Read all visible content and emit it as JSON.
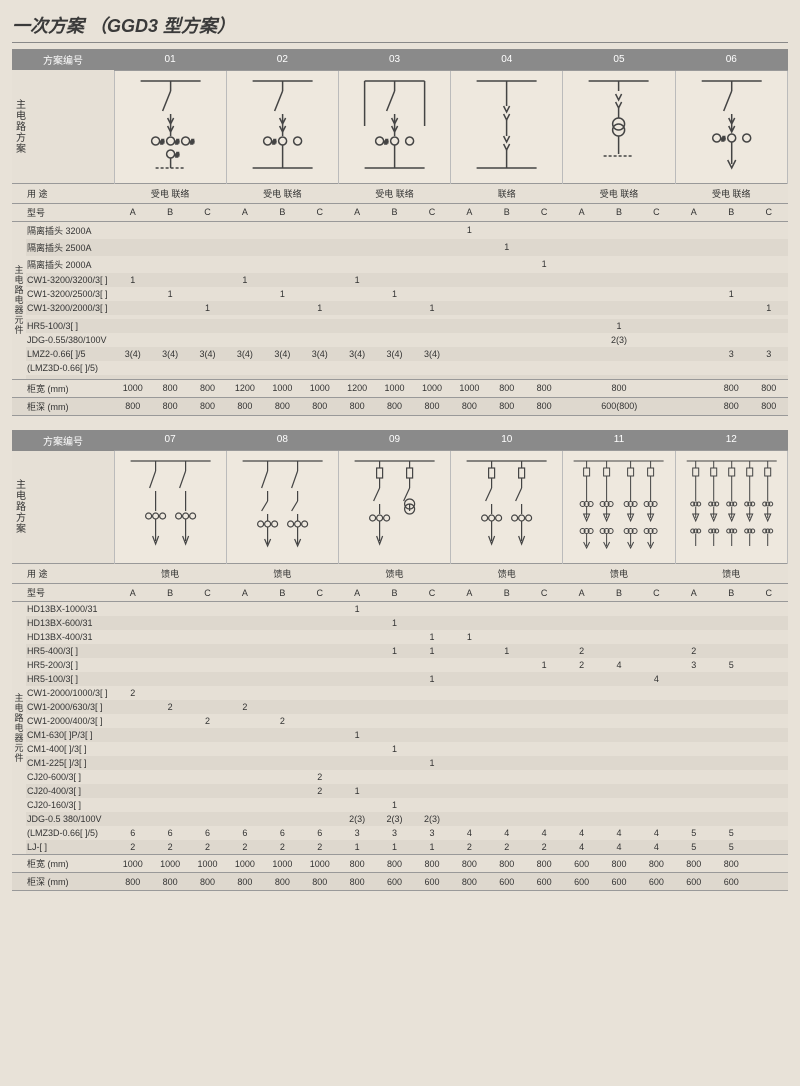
{
  "title": "一次方案 （GGD3 型方案）",
  "labels": {
    "scheme_no": "方案编号",
    "main_circuit": "主电路方案",
    "use": "用 途",
    "model": "型号",
    "components": "主电路电器元件",
    "width": "柜宽 (mm)",
    "depth": "柜深 (mm)",
    "incoming": "受电",
    "tie": "联络",
    "feeder": "馈电",
    "A": "A",
    "B": "B",
    "C": "C"
  },
  "table1": {
    "schemes": [
      "01",
      "02",
      "03",
      "04",
      "05",
      "06"
    ],
    "diagrams": [
      "d1",
      "d1",
      "d1",
      "d4",
      "d5",
      "d6"
    ],
    "uses": [
      "受电 联络",
      "受电 联络",
      "受电 联络",
      "联络",
      "受电 联络",
      "受电 联络"
    ],
    "rows": [
      {
        "label": "隔离插头 3200A",
        "v": [
          "",
          "",
          "",
          "",
          "",
          "",
          "",
          "",
          "",
          "1",
          "",
          "",
          "",
          "",
          "",
          "",
          "",
          ""
        ]
      },
      {
        "label": "隔离插头 2500A",
        "v": [
          "",
          "",
          "",
          "",
          "",
          "",
          "",
          "",
          "",
          "",
          "1",
          "",
          "",
          "",
          "",
          "",
          "",
          ""
        ]
      },
      {
        "label": "隔离插头 2000A",
        "v": [
          "",
          "",
          "",
          "",
          "",
          "",
          "",
          "",
          "",
          "",
          "",
          "1",
          "",
          "",
          "",
          "",
          "",
          ""
        ]
      },
      {
        "label": "CW1-3200/3200/3[ ]",
        "v": [
          "1",
          "",
          "",
          "1",
          "",
          "",
          "1",
          "",
          "",
          "",
          "",
          "",
          "",
          "",
          "",
          "",
          "",
          ""
        ]
      },
      {
        "label": "CW1-3200/2500/3[ ]",
        "v": [
          "",
          "1",
          "",
          "",
          "1",
          "",
          "",
          "1",
          "",
          "",
          "",
          "",
          "",
          "",
          "",
          "",
          "1",
          ""
        ]
      },
      {
        "label": "CW1-3200/2000/3[ ]",
        "v": [
          "",
          "",
          "1",
          "",
          "",
          "1",
          "",
          "",
          "1",
          "",
          "",
          "",
          "",
          "",
          "",
          "",
          "",
          "1"
        ]
      },
      {
        "label": "",
        "v": [
          "",
          "",
          "",
          "",
          "",
          "",
          "",
          "",
          "",
          "",
          "",
          "",
          "",
          "",
          "",
          "",
          "",
          ""
        ]
      },
      {
        "label": "HR5-100/3[ ]",
        "v": [
          "",
          "",
          "",
          "",
          "",
          "",
          "",
          "",
          "",
          "",
          "",
          "",
          "",
          "1",
          "",
          "",
          "",
          ""
        ]
      },
      {
        "label": "JDG-0.55/380/100V",
        "v": [
          "",
          "",
          "",
          "",
          "",
          "",
          "",
          "",
          "",
          "",
          "",
          "",
          "",
          "2(3)",
          "",
          "",
          "",
          ""
        ]
      },
      {
        "label": "LMZ2-0.66[ ]/5",
        "v": [
          "3(4)",
          "3(4)",
          "3(4)",
          "3(4)",
          "3(4)",
          "3(4)",
          "3(4)",
          "3(4)",
          "3(4)",
          "",
          "",
          "",
          "",
          "",
          "",
          "",
          "3",
          "3"
        ]
      },
      {
        "label": "(LMZ3D-0.66[ ]/5)",
        "v": [
          "",
          "",
          "",
          "",
          "",
          "",
          "",
          "",
          "",
          "",
          "",
          "",
          "",
          "",
          "",
          "",
          "",
          ""
        ]
      },
      {
        "label": "",
        "v": [
          "",
          "",
          "",
          "",
          "",
          "",
          "",
          "",
          "",
          "",
          "",
          "",
          "",
          "",
          "",
          "",
          "",
          ""
        ]
      }
    ],
    "width": [
      "1000",
      "800",
      "800",
      "1200",
      "1000",
      "1000",
      "1200",
      "1000",
      "1000",
      "1000",
      "800",
      "800",
      "",
      "800",
      "",
      "",
      "800",
      "800"
    ],
    "depth": [
      "800",
      "800",
      "800",
      "800",
      "800",
      "800",
      "800",
      "800",
      "800",
      "800",
      "800",
      "800",
      "",
      "600(800)",
      "",
      "",
      "800",
      "800"
    ]
  },
  "table2": {
    "schemes": [
      "07",
      "08",
      "09",
      "10",
      "11",
      "12"
    ],
    "diagrams": [
      "d7",
      "d7",
      "d9",
      "d10",
      "d11",
      "d11"
    ],
    "uses": [
      "馈电",
      "馈电",
      "馈电",
      "馈电",
      "馈电",
      "馈电"
    ],
    "rows": [
      {
        "label": "HD13BX-1000/31",
        "v": [
          "",
          "",
          "",
          "",
          "",
          "",
          "1",
          "",
          "",
          "",
          "",
          "",
          "",
          "",
          "",
          "",
          "",
          ""
        ]
      },
      {
        "label": "HD13BX-600/31",
        "v": [
          "",
          "",
          "",
          "",
          "",
          "",
          "",
          "1",
          "",
          "",
          "",
          "",
          "",
          "",
          "",
          "",
          "",
          ""
        ]
      },
      {
        "label": "HD13BX-400/31",
        "v": [
          "",
          "",
          "",
          "",
          "",
          "",
          "",
          "",
          "1",
          "1",
          "",
          "",
          "",
          "",
          "",
          "",
          "",
          ""
        ]
      },
      {
        "label": "HR5-400/3[ ]",
        "v": [
          "",
          "",
          "",
          "",
          "",
          "",
          "",
          "1",
          "1",
          "",
          "1",
          "",
          "2",
          "",
          "",
          "2",
          "",
          ""
        ]
      },
      {
        "label": "HR5-200/3[ ]",
        "v": [
          "",
          "",
          "",
          "",
          "",
          "",
          "",
          "",
          "",
          "",
          "",
          "1",
          "2",
          "4",
          "",
          "3",
          "5",
          ""
        ]
      },
      {
        "label": "HR5-100/3[ ]",
        "v": [
          "",
          "",
          "",
          "",
          "",
          "",
          "",
          "",
          "1",
          "",
          "",
          "",
          "",
          "",
          "4",
          "",
          "",
          ""
        ]
      },
      {
        "label": "CW1-2000/1000/3[ ]",
        "v": [
          "2",
          "",
          "",
          "",
          "",
          "",
          "",
          "",
          "",
          "",
          "",
          "",
          "",
          "",
          "",
          "",
          "",
          ""
        ]
      },
      {
        "label": "CW1-2000/630/3[ ]",
        "v": [
          "",
          "2",
          "",
          "2",
          "",
          "",
          "",
          "",
          "",
          "",
          "",
          "",
          "",
          "",
          "",
          "",
          "",
          ""
        ]
      },
      {
        "label": "CW1-2000/400/3[ ]",
        "v": [
          "",
          "",
          "2",
          "",
          "2",
          "",
          "",
          "",
          "",
          "",
          "",
          "",
          "",
          "",
          "",
          "",
          "",
          ""
        ]
      },
      {
        "label": "CM1-630[ ]P/3[ ]",
        "v": [
          "",
          "",
          "",
          "",
          "",
          "",
          "1",
          "",
          "",
          "",
          "",
          "",
          "",
          "",
          "",
          "",
          "",
          ""
        ]
      },
      {
        "label": "CM1-400[ ]/3[ ]",
        "v": [
          "",
          "",
          "",
          "",
          "",
          "",
          "",
          "1",
          "",
          "",
          "",
          "",
          "",
          "",
          "",
          "",
          "",
          ""
        ]
      },
      {
        "label": "CM1-225[ ]/3[ ]",
        "v": [
          "",
          "",
          "",
          "",
          "",
          "",
          "",
          "",
          "1",
          "",
          "",
          "",
          "",
          "",
          "",
          "",
          "",
          ""
        ]
      },
      {
        "label": "CJ20-600/3[ ]",
        "v": [
          "",
          "",
          "",
          "",
          "",
          "2",
          "",
          "",
          "",
          "",
          "",
          "",
          "",
          "",
          "",
          "",
          "",
          ""
        ]
      },
      {
        "label": "CJ20-400/3[ ]",
        "v": [
          "",
          "",
          "",
          "",
          "",
          "2",
          "1",
          "",
          "",
          "",
          "",
          "",
          "",
          "",
          "",
          "",
          "",
          ""
        ]
      },
      {
        "label": "CJ20-160/3[ ]",
        "v": [
          "",
          "",
          "",
          "",
          "",
          "",
          "",
          "1",
          "",
          "",
          "",
          "",
          "",
          "",
          "",
          "",
          "",
          ""
        ]
      },
      {
        "label": "JDG-0.5 380/100V",
        "v": [
          "",
          "",
          "",
          "",
          "",
          "",
          "2(3)",
          "2(3)",
          "2(3)",
          "",
          "",
          "",
          "",
          "",
          "",
          "",
          "",
          ""
        ]
      },
      {
        "label": "(LMZ3D-0.66[ ]/5)",
        "v": [
          "6",
          "6",
          "6",
          "6",
          "6",
          "6",
          "3",
          "3",
          "3",
          "4",
          "4",
          "4",
          "4",
          "4",
          "4",
          "5",
          "5",
          ""
        ]
      },
      {
        "label": "LJ-[ ]",
        "v": [
          "2",
          "2",
          "2",
          "2",
          "2",
          "2",
          "1",
          "1",
          "1",
          "2",
          "2",
          "2",
          "4",
          "4",
          "4",
          "5",
          "5",
          ""
        ]
      }
    ],
    "width": [
      "1000",
      "1000",
      "1000",
      "1000",
      "1000",
      "1000",
      "800",
      "800",
      "800",
      "800",
      "800",
      "800",
      "600",
      "800",
      "800",
      "800",
      "800",
      ""
    ],
    "depth": [
      "800",
      "800",
      "800",
      "800",
      "800",
      "800",
      "800",
      "600",
      "600",
      "800",
      "600",
      "600",
      "600",
      "600",
      "600",
      "600",
      "600",
      ""
    ]
  },
  "svg_stroke": "#444"
}
